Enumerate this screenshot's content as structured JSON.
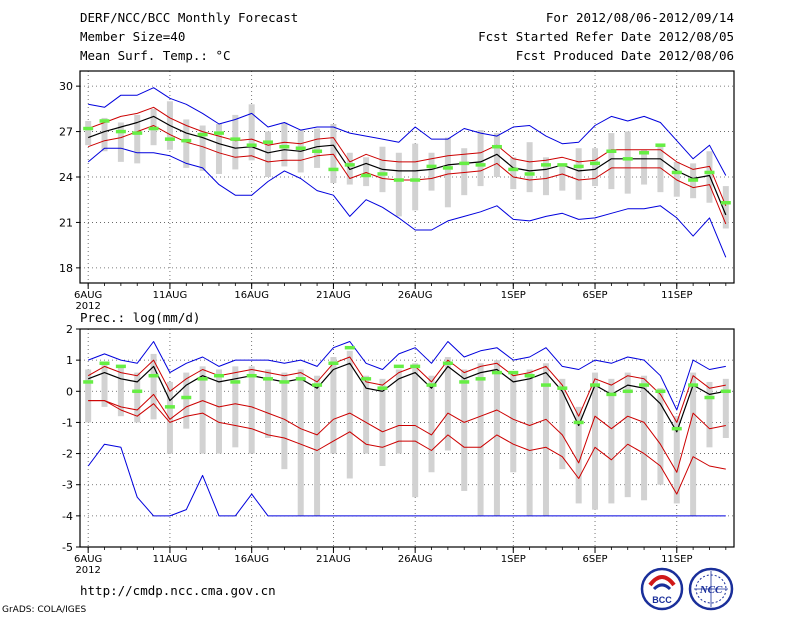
{
  "header": {
    "title": "DERF/NCC/BCC Monthly Forecast",
    "member_size": "Member Size=40",
    "variable": "Mean Surf. Temp.: °C",
    "period": "For 2012/08/06-2012/09/14",
    "fcst_started": "Fcst Started Refer Date 2012/08/05",
    "fcst_produced": "Fcst Produced Date 2012/08/06"
  },
  "lower_title": "Prec.: log(mm/d)",
  "footer": {
    "url": "http://cmdp.ncc.cma.gov.cn",
    "credit": "GrADS: COLA/IGES"
  },
  "logos": {
    "bcc": "BCC",
    "ncc": "NCC"
  },
  "colors": {
    "envelope": "#0000dd",
    "spread": "#cc0000",
    "mean": "#000000",
    "obs": "#66ee44",
    "box": "#d2d2d2"
  },
  "chart_data": [
    {
      "type": "line",
      "name": "temperature",
      "title": "Mean Surf. Temp.: °C",
      "ylim": [
        17,
        31
      ],
      "yticks": [
        18,
        21,
        24,
        27,
        30
      ],
      "xlim": [
        0.5,
        40.5
      ],
      "xticks": [
        {
          "x": 1,
          "label": "6AUG",
          "sub": "2012"
        },
        {
          "x": 6,
          "label": "11AUG"
        },
        {
          "x": 11,
          "label": "16AUG"
        },
        {
          "x": 16,
          "label": "21AUG"
        },
        {
          "x": 21,
          "label": "26AUG"
        },
        {
          "x": 27,
          "label": "1SEP"
        },
        {
          "x": 32,
          "label": "6SEP"
        },
        {
          "x": 37,
          "label": "11SEP"
        }
      ],
      "grid": "dotted",
      "days": 40,
      "max": [
        28.8,
        28.6,
        29.4,
        29.4,
        29.9,
        29.2,
        28.8,
        28.2,
        27.5,
        27.8,
        28.2,
        27.3,
        27.6,
        27.1,
        27.3,
        27.3,
        26.9,
        26.7,
        26.5,
        26.3,
        27.3,
        26.5,
        26.5,
        27.2,
        26.9,
        26.7,
        27.3,
        27.4,
        26.7,
        26.2,
        26.3,
        27.4,
        28.0,
        27.7,
        28.0,
        27.6,
        26.4,
        25.2,
        26.1,
        24.1
      ],
      "min": [
        25.0,
        25.9,
        25.9,
        25.6,
        25.6,
        25.4,
        24.9,
        24.6,
        23.5,
        22.8,
        22.8,
        23.7,
        24.4,
        23.9,
        23.1,
        22.8,
        21.4,
        22.5,
        22.0,
        21.3,
        20.5,
        20.5,
        21.1,
        21.4,
        21.7,
        22.1,
        21.2,
        21.1,
        21.4,
        21.6,
        21.2,
        21.3,
        21.6,
        21.9,
        21.9,
        22.1,
        21.3,
        20.1,
        21.3,
        18.7
      ],
      "upper": [
        27.2,
        27.6,
        28.0,
        28.2,
        28.6,
        27.9,
        27.4,
        27.0,
        26.7,
        26.4,
        26.5,
        26.1,
        26.3,
        26.2,
        26.5,
        26.6,
        25.0,
        25.5,
        25.1,
        25.0,
        25.0,
        25.2,
        25.4,
        25.5,
        25.6,
        26.1,
        25.2,
        25.0,
        25.1,
        25.3,
        25.0,
        25.1,
        25.8,
        25.8,
        25.8,
        25.8,
        25.0,
        24.5,
        24.7,
        22.1
      ],
      "mean": [
        26.6,
        27.0,
        27.3,
        27.6,
        28.0,
        27.4,
        26.9,
        26.6,
        26.2,
        25.9,
        26.0,
        25.6,
        25.8,
        25.7,
        26.0,
        26.1,
        24.5,
        24.9,
        24.5,
        24.4,
        24.4,
        24.5,
        24.8,
        24.9,
        25.0,
        25.5,
        24.6,
        24.4,
        24.5,
        24.8,
        24.4,
        24.5,
        25.2,
        25.2,
        25.2,
        25.2,
        24.4,
        23.9,
        24.1,
        21.5
      ],
      "lower": [
        26.0,
        26.4,
        26.6,
        27.0,
        27.4,
        26.8,
        26.3,
        26.0,
        25.6,
        25.3,
        25.4,
        25.0,
        25.1,
        25.1,
        25.4,
        25.5,
        23.9,
        24.3,
        23.9,
        23.8,
        23.8,
        23.9,
        24.2,
        24.3,
        24.4,
        24.9,
        24.0,
        23.8,
        23.9,
        24.2,
        23.8,
        23.9,
        24.6,
        24.6,
        24.6,
        24.6,
        23.8,
        23.3,
        23.5,
        20.9
      ],
      "box_hi": [
        27.7,
        27.9,
        27.6,
        28.1,
        28.5,
        29.0,
        27.8,
        27.4,
        27.5,
        28.1,
        28.8,
        27.0,
        27.6,
        27.1,
        27.2,
        27.5,
        25.6,
        25.3,
        26.0,
        25.6,
        26.2,
        25.6,
        26.6,
        25.9,
        27.1,
        26.9,
        25.3,
        26.3,
        25.3,
        24.8,
        25.9,
        25.9,
        26.9,
        27.0,
        25.8,
        26.2,
        25.0,
        24.9,
        25.7,
        23.4
      ],
      "box_lo": [
        26.1,
        25.7,
        25.0,
        24.9,
        26.1,
        25.8,
        24.6,
        24.4,
        24.2,
        24.5,
        25.1,
        24.0,
        24.7,
        24.3,
        24.6,
        23.6,
        23.5,
        23.4,
        23.0,
        21.4,
        21.8,
        23.1,
        22.0,
        22.8,
        23.4,
        24.0,
        23.2,
        23.0,
        22.8,
        23.1,
        22.5,
        23.4,
        23.2,
        22.9,
        23.5,
        23.0,
        22.7,
        22.6,
        22.3,
        20.6
      ],
      "obs": [
        27.2,
        27.7,
        27.0,
        26.9,
        27.2,
        26.5,
        26.4,
        26.8,
        26.9,
        26.5,
        26.1,
        26.3,
        26.0,
        25.9,
        25.7,
        24.5,
        24.8,
        24.1,
        24.2,
        23.8,
        23.8,
        24.7,
        24.6,
        24.9,
        24.8,
        26.0,
        24.5,
        24.2,
        24.8,
        24.8,
        24.7,
        24.9,
        25.7,
        25.2,
        25.6,
        26.1,
        24.3,
        23.8,
        24.3,
        22.3
      ]
    },
    {
      "type": "line",
      "name": "precipitation",
      "title": "Prec.: log(mm/d)",
      "ylim": [
        -5,
        2
      ],
      "yticks": [
        -5,
        -4,
        -3,
        -2,
        -1,
        0,
        1,
        2
      ],
      "xlim": [
        0.5,
        40.5
      ],
      "xticks": [
        {
          "x": 1,
          "label": "6AUG",
          "sub": "2012"
        },
        {
          "x": 6,
          "label": "11AUG"
        },
        {
          "x": 11,
          "label": "16AUG"
        },
        {
          "x": 16,
          "label": "21AUG"
        },
        {
          "x": 21,
          "label": "26AUG"
        },
        {
          "x": 27,
          "label": "1SEP"
        },
        {
          "x": 32,
          "label": "6SEP"
        },
        {
          "x": 37,
          "label": "11SEP"
        }
      ],
      "grid": "dotted",
      "days": 40,
      "max": [
        1.0,
        1.2,
        1.0,
        0.9,
        1.6,
        0.6,
        0.9,
        1.1,
        0.8,
        1.0,
        1.0,
        1.0,
        0.9,
        1.0,
        0.8,
        1.4,
        1.6,
        0.9,
        0.7,
        1.2,
        1.4,
        0.9,
        1.6,
        1.1,
        1.3,
        1.4,
        1.0,
        1.1,
        1.4,
        0.8,
        0.7,
        1.0,
        0.9,
        1.1,
        1.0,
        0.5,
        -0.6,
        1.0,
        0.7,
        0.8
      ],
      "min": [
        -2.4,
        -1.7,
        -1.8,
        -3.4,
        -4.0,
        -4.0,
        -3.8,
        -2.7,
        -4.0,
        -4.0,
        -3.3,
        -4.0,
        -4.0,
        -4.0,
        -4.0,
        -4.0,
        -4.0,
        -4.0,
        -4.0,
        -4.0,
        -4.0,
        -4.0,
        -4.0,
        -4.0,
        -4.0,
        -4.0,
        -4.0,
        -4.0,
        -4.0,
        -4.0,
        -4.0,
        -4.0,
        -4.0,
        -4.0,
        -4.0,
        -4.0,
        -4.0,
        -4.0,
        -4.0,
        -4.0
      ],
      "upper": [
        0.5,
        0.8,
        0.6,
        0.5,
        1.0,
        0.0,
        0.4,
        0.7,
        0.5,
        0.6,
        0.7,
        0.6,
        0.5,
        0.6,
        0.3,
        0.9,
        1.1,
        0.3,
        0.2,
        0.6,
        0.8,
        0.3,
        1.0,
        0.6,
        0.8,
        0.9,
        0.5,
        0.6,
        0.8,
        0.2,
        -0.8,
        0.4,
        0.2,
        0.5,
        0.4,
        -0.1,
        -1.0,
        0.5,
        0.1,
        0.2
      ],
      "mean": [
        0.4,
        0.6,
        0.4,
        0.3,
        0.8,
        -0.3,
        0.2,
        0.5,
        0.3,
        0.4,
        0.5,
        0.4,
        0.3,
        0.4,
        0.1,
        0.7,
        0.9,
        0.1,
        0.0,
        0.4,
        0.6,
        0.1,
        0.8,
        0.4,
        0.6,
        0.7,
        0.3,
        0.4,
        0.6,
        0.0,
        -1.1,
        0.2,
        -0.1,
        0.2,
        0.1,
        -0.4,
        -1.3,
        0.2,
        -0.1,
        0.0
      ],
      "lower": [
        -0.3,
        -0.3,
        -0.5,
        -0.6,
        -0.1,
        -0.9,
        -0.5,
        -0.3,
        -0.5,
        -0.4,
        -0.5,
        -0.7,
        -0.9,
        -1.2,
        -1.4,
        -0.9,
        -0.7,
        -1.0,
        -1.3,
        -1.1,
        -1.1,
        -1.4,
        -0.7,
        -1.0,
        -0.8,
        -0.6,
        -0.9,
        -1.1,
        -0.9,
        -1.4,
        -2.3,
        -0.8,
        -1.2,
        -0.8,
        -1.0,
        -1.7,
        -2.6,
        -0.7,
        -1.2,
        -1.1
      ],
      "lowest": [
        -0.3,
        -0.3,
        -0.6,
        -0.8,
        -0.4,
        -1.0,
        -0.8,
        -0.7,
        -1.0,
        -1.1,
        -1.2,
        -1.4,
        -1.5,
        -1.7,
        -1.9,
        -1.6,
        -1.3,
        -1.7,
        -1.8,
        -1.6,
        -1.6,
        -1.9,
        -1.4,
        -1.8,
        -1.8,
        -1.4,
        -1.7,
        -1.9,
        -1.8,
        -2.1,
        -2.8,
        -1.8,
        -2.2,
        -1.7,
        -2.0,
        -2.4,
        -3.3,
        -2.1,
        -2.4,
        -2.5
      ],
      "box_hi": [
        0.7,
        0.9,
        0.8,
        0.6,
        1.2,
        0.3,
        0.6,
        0.8,
        0.7,
        0.8,
        0.8,
        0.7,
        0.6,
        0.7,
        0.5,
        1.1,
        1.3,
        0.5,
        0.4,
        0.7,
        0.9,
        0.5,
        1.1,
        0.7,
        0.9,
        1.0,
        0.6,
        0.7,
        0.9,
        0.4,
        -0.5,
        0.6,
        0.4,
        0.6,
        0.5,
        0.1,
        -0.8,
        0.6,
        0.3,
        0.4
      ],
      "box_lo": [
        -1.0,
        -0.5,
        -0.8,
        -1.0,
        -0.9,
        -2.0,
        -1.2,
        -2.0,
        -2.0,
        -1.8,
        -2.0,
        -1.5,
        -2.5,
        -4.0,
        -4.0,
        -2.0,
        -2.8,
        -2.0,
        -2.4,
        -2.0,
        -3.4,
        -2.6,
        -1.9,
        -3.2,
        -4.0,
        -4.0,
        -2.6,
        -4.0,
        -4.0,
        -2.5,
        -3.6,
        -3.8,
        -3.6,
        -3.4,
        -3.5,
        -3.0,
        -3.6,
        -4.0,
        -1.8,
        -1.5
      ],
      "obs": [
        0.3,
        0.9,
        0.8,
        0.0,
        0.5,
        -0.5,
        -0.2,
        0.4,
        0.5,
        0.3,
        0.5,
        0.4,
        0.3,
        0.4,
        0.2,
        0.9,
        1.4,
        0.4,
        0.1,
        0.8,
        0.8,
        0.2,
        0.9,
        0.3,
        0.4,
        0.6,
        0.6,
        0.5,
        0.2,
        0.1,
        -1.0,
        0.2,
        -0.1,
        0.0,
        0.2,
        0.0,
        -1.2,
        0.2,
        -0.2,
        0.0
      ]
    }
  ]
}
